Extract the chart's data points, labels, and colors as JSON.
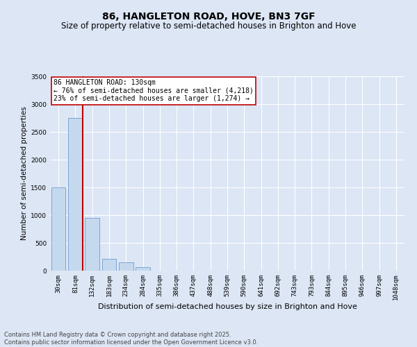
{
  "title": "86, HANGLETON ROAD, HOVE, BN3 7GF",
  "subtitle": "Size of property relative to semi-detached houses in Brighton and Hove",
  "xlabel": "Distribution of semi-detached houses by size in Brighton and Hove",
  "ylabel": "Number of semi-detached properties",
  "categories": [
    "30sqm",
    "81sqm",
    "132sqm",
    "183sqm",
    "234sqm",
    "284sqm",
    "335sqm",
    "386sqm",
    "437sqm",
    "488sqm",
    "539sqm",
    "590sqm",
    "641sqm",
    "692sqm",
    "743sqm",
    "793sqm",
    "844sqm",
    "895sqm",
    "946sqm",
    "997sqm",
    "1048sqm"
  ],
  "values": [
    1500,
    2750,
    950,
    210,
    150,
    60,
    0,
    0,
    0,
    0,
    0,
    0,
    0,
    0,
    0,
    0,
    0,
    0,
    0,
    0,
    0
  ],
  "bar_color": "#c5d9ee",
  "bar_edge_color": "#5b8cc8",
  "vline_color": "#c00000",
  "annotation_text": "86 HANGLETON ROAD: 130sqm\n← 76% of semi-detached houses are smaller (4,218)\n23% of semi-detached houses are larger (1,274) →",
  "annotation_box_color": "#ffffff",
  "annotation_box_edge_color": "#c00000",
  "ylim": [
    0,
    3500
  ],
  "yticks": [
    0,
    500,
    1000,
    1500,
    2000,
    2500,
    3000,
    3500
  ],
  "background_color": "#dce6f5",
  "plot_bg_color": "#dce6f5",
  "footer_text": "Contains HM Land Registry data © Crown copyright and database right 2025.\nContains public sector information licensed under the Open Government Licence v3.0.",
  "title_fontsize": 10,
  "subtitle_fontsize": 8.5,
  "xlabel_fontsize": 8,
  "ylabel_fontsize": 7.5,
  "tick_fontsize": 6.5,
  "annotation_fontsize": 7,
  "footer_fontsize": 6
}
